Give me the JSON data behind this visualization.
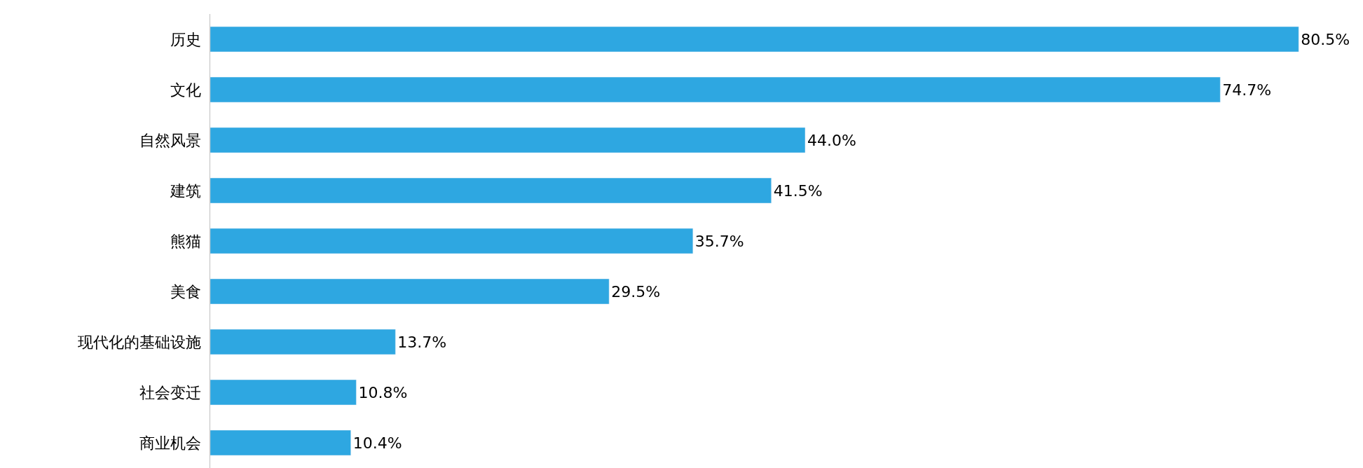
{
  "chart_data": {
    "type": "bar",
    "orientation": "horizontal",
    "categories": [
      "历史",
      "文化",
      "自然风景",
      "建筑",
      "熊猫",
      "美食",
      "现代化的基础设施",
      "社会变迁",
      "商业机会"
    ],
    "values": [
      80.5,
      74.7,
      44.0,
      41.5,
      35.7,
      29.5,
      13.7,
      10.8,
      10.4
    ],
    "value_labels": [
      "80.5%",
      "74.7%",
      "44.0%",
      "41.5%",
      "35.7%",
      "29.5%",
      "13.7%",
      "10.8%",
      "10.4%"
    ],
    "color": "#2ea7e1",
    "tick_labels": "y"
  }
}
